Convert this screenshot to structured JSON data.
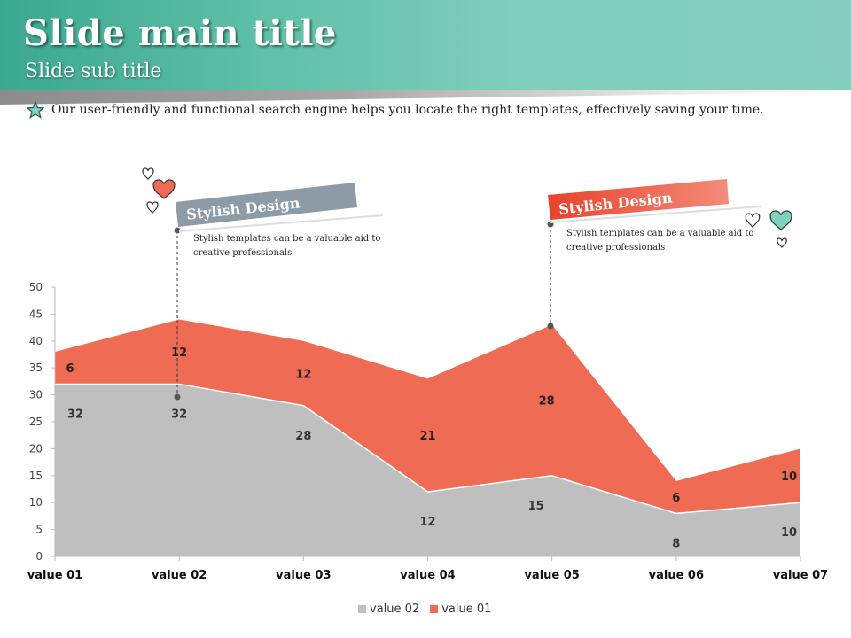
{
  "header": {
    "title": "Slide main title",
    "subtitle": "Slide sub title"
  },
  "description": "Our user-friendly and functional search engine helps you locate the right templates, effectively saving your time.",
  "callouts": [
    {
      "banner": "Stylish Design",
      "text": "Stylish templates can be a valuable aid to creative professionals",
      "color": "#8c9ba6"
    },
    {
      "banner": "Stylish Design",
      "text": "Stylish templates can be a valuable aid to creative professionals",
      "color": "#e8503a"
    }
  ],
  "colors": {
    "header": "#6cc5b0",
    "value02": "#bfbfbf",
    "value01": "#f06b54"
  },
  "chart_data": {
    "type": "area",
    "stacked": true,
    "categories": [
      "value 01",
      "value 02",
      "value 03",
      "value 04",
      "value 05",
      "value 06",
      "value 07"
    ],
    "series": [
      {
        "name": "value 02",
        "values": [
          32,
          32,
          28,
          12,
          15,
          8,
          10
        ]
      },
      {
        "name": "value 01",
        "values": [
          6,
          12,
          12,
          21,
          28,
          6,
          10
        ]
      }
    ],
    "ylim": [
      0,
      50
    ],
    "yticks": [
      0,
      5,
      10,
      15,
      20,
      25,
      30,
      35,
      40,
      45,
      50
    ],
    "legend": {
      "position": "bottom",
      "items": [
        "value 02",
        "value 01"
      ]
    }
  }
}
